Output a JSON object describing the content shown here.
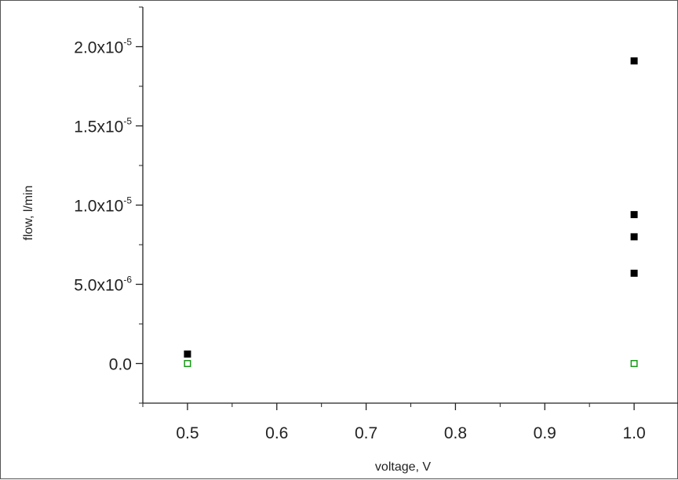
{
  "chart_data": {
    "type": "scatter",
    "xlabel": "voltage, V",
    "ylabel": "flow, l/min",
    "xlim": [
      0.45,
      1.05
    ],
    "ylim": [
      -2.5e-06,
      2.25e-05
    ],
    "x_ticks": [
      0.5,
      0.6,
      0.7,
      0.8,
      0.9,
      1.0
    ],
    "x_tick_labels": [
      "0.5",
      "0.6",
      "0.7",
      "0.8",
      "0.9",
      "1.0"
    ],
    "y_ticks": [
      {
        "value": 0,
        "base": "0.0",
        "exp": ""
      },
      {
        "value": 5e-06,
        "base": "5.0x10",
        "exp": "-6"
      },
      {
        "value": 1e-05,
        "base": "1.0x10",
        "exp": "-5"
      },
      {
        "value": 1.5e-05,
        "base": "1.5x10",
        "exp": "-5"
      },
      {
        "value": 2e-05,
        "base": "2.0x10",
        "exp": "-5"
      }
    ],
    "grid": false,
    "series": [
      {
        "marker": "filled-square",
        "color": "#000000",
        "points": [
          {
            "x": 0.5,
            "y": 6e-07
          },
          {
            "x": 1.0,
            "y": 1.91e-05
          },
          {
            "x": 1.0,
            "y": 9.4e-06
          },
          {
            "x": 1.0,
            "y": 8e-06
          },
          {
            "x": 1.0,
            "y": 5.7e-06
          }
        ]
      },
      {
        "marker": "open-square",
        "color": "#1a9a1a",
        "points": [
          {
            "x": 0.5,
            "y": 0.0
          },
          {
            "x": 1.0,
            "y": 0.0
          }
        ]
      }
    ]
  }
}
